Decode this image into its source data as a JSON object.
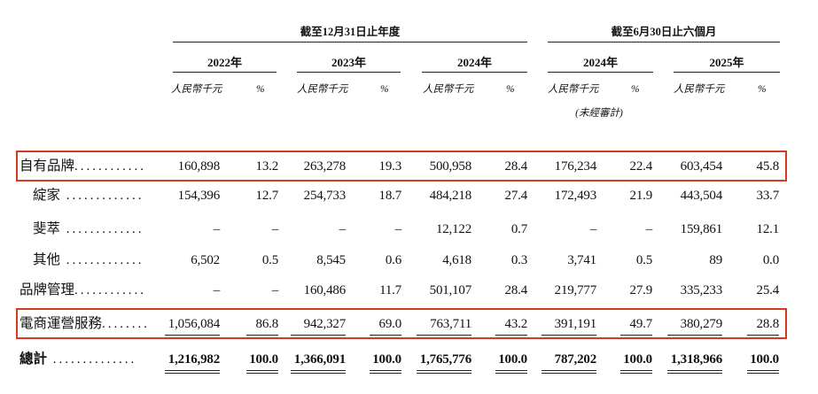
{
  "style": {
    "highlight_color": "#d63a22",
    "text_color": "#111111"
  },
  "period_headers": [
    "截至12月31日止年度",
    "截至6月30日止六個月"
  ],
  "column_groups": [
    {
      "year": "2022年",
      "unit": "人民幣千元",
      "pct": "%"
    },
    {
      "year": "2023年",
      "unit": "人民幣千元",
      "pct": "%"
    },
    {
      "year": "2024年",
      "unit": "人民幣千元",
      "pct": "%"
    },
    {
      "year": "2024年",
      "unit": "人民幣千元",
      "pct": "%",
      "note": "(未經審計)"
    },
    {
      "year": "2025年",
      "unit": "人民幣千元",
      "pct": "%"
    }
  ],
  "rows": [
    {
      "label": "自有品牌",
      "leader": "............",
      "highlighted": true,
      "values": [
        "160,898",
        "13.2",
        "263,278",
        "19.3",
        "500,958",
        "28.4",
        "176,234",
        "22.4",
        "603,454",
        "45.8"
      ]
    },
    {
      "label": "綻家",
      "leader": " .............",
      "highlighted": false,
      "values": [
        "154,396",
        "12.7",
        "254,733",
        "18.7",
        "484,218",
        "27.4",
        "172,493",
        "21.9",
        "443,504",
        "33.7"
      ]
    },
    {
      "label": "斐萃",
      "leader": " .............",
      "highlighted": false,
      "values": [
        "–",
        "–",
        "–",
        "–",
        "12,122",
        "0.7",
        "–",
        "–",
        "159,861",
        "12.1"
      ]
    },
    {
      "label": "其他",
      "leader": " .............",
      "highlighted": false,
      "values": [
        "6,502",
        "0.5",
        "8,545",
        "0.6",
        "4,618",
        "0.3",
        "3,741",
        "0.5",
        "89",
        "0.0"
      ]
    },
    {
      "label": "品牌管理",
      "leader": "............",
      "highlighted": false,
      "values": [
        "–",
        "–",
        "160,486",
        "11.7",
        "501,107",
        "28.4",
        "219,777",
        "27.9",
        "335,233",
        "25.4"
      ]
    },
    {
      "label": "電商運營服務",
      "leader": "........",
      "highlighted": true,
      "values": [
        "1,056,084",
        "86.8",
        "942,327",
        "69.0",
        "763,711",
        "43.2",
        "391,191",
        "49.7",
        "380,279",
        "28.8"
      ]
    },
    {
      "label": "總計",
      "leader": " ..............",
      "highlighted": false,
      "values": [
        "1,216,982",
        "100.0",
        "1,366,091",
        "100.0",
        "1,765,776",
        "100.0",
        "787,202",
        "100.0",
        "1,318,966",
        "100.0"
      ]
    }
  ]
}
